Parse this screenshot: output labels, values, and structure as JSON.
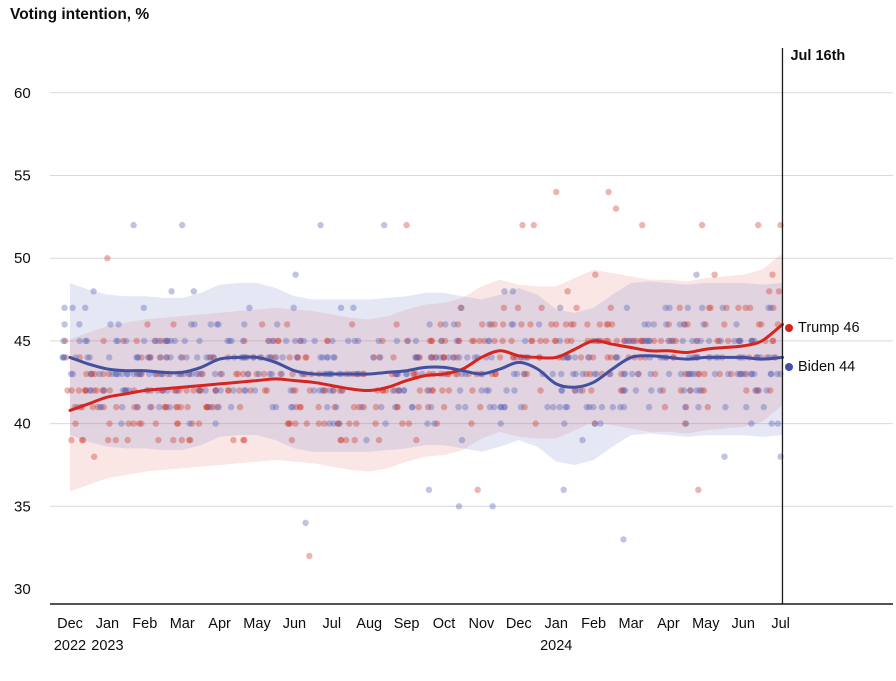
{
  "title": "Voting intention, %",
  "event_label": "Jul 16th",
  "end_labels": {
    "trump": "Trump 46",
    "biden": "Biden 44"
  },
  "colors": {
    "trump_line": "#d6241f",
    "biden_line": "#4350a0",
    "trump_dot": "#cf3c30",
    "biden_dot": "#5a64b8",
    "trump_band": "#e4695e",
    "biden_band": "#7d88cb",
    "grid": "#d9d9d9",
    "axis": "#1a1a1a",
    "text": "#0d0d0d"
  },
  "chart_data": {
    "type": "line+scatter",
    "title": "Voting intention, %",
    "ylabel": "Voting intention, %",
    "y_ticks": [
      30,
      35,
      40,
      45,
      50,
      55,
      60
    ],
    "y_range": [
      29,
      62
    ],
    "grid": true,
    "x_tick_labels": [
      "Dec",
      "Jan",
      "Feb",
      "Mar",
      "Apr",
      "May",
      "Jun",
      "Jul",
      "Aug",
      "Sep",
      "Oct",
      "Nov",
      "Dec",
      "Jan",
      "Feb",
      "Mar",
      "Apr",
      "May",
      "Jun",
      "Jul"
    ],
    "year_labels": [
      {
        "text": "2022",
        "month_index": 0
      },
      {
        "text": "2023",
        "month_index": 1
      },
      {
        "text": "2024",
        "month_index": 13
      }
    ],
    "event_line": {
      "month_index": 19.05,
      "label": "Jul 16th"
    },
    "x": [
      0,
      0.5,
      1,
      1.5,
      2,
      2.5,
      3,
      3.5,
      4,
      4.5,
      5,
      5.5,
      6,
      6.5,
      7,
      7.5,
      8,
      8.5,
      9,
      9.5,
      10,
      10.5,
      11,
      11.5,
      12,
      12.5,
      13,
      13.5,
      14,
      14.5,
      15,
      15.5,
      16,
      16.5,
      17,
      17.5,
      18,
      18.5,
      19.05
    ],
    "series": [
      {
        "name": "Trump",
        "end_value": 46,
        "values": [
          40.8,
          41.2,
          41.6,
          41.8,
          42.0,
          42.1,
          42.2,
          42.3,
          42.4,
          42.5,
          42.6,
          42.7,
          42.6,
          42.5,
          42.3,
          42.1,
          42.0,
          42.2,
          42.6,
          42.9,
          43.0,
          43.3,
          44.0,
          44.4,
          44.1,
          44.0,
          44.0,
          44.5,
          45.0,
          44.8,
          44.6,
          44.4,
          44.4,
          44.3,
          44.5,
          44.6,
          44.7,
          45.0,
          46.0
        ]
      },
      {
        "name": "Biden",
        "end_value": 44,
        "values": [
          44.0,
          43.6,
          43.3,
          43.2,
          43.2,
          43.1,
          43.1,
          43.4,
          43.9,
          44.0,
          44.0,
          43.7,
          43.2,
          43.0,
          43.0,
          43.0,
          43.0,
          43.1,
          43.2,
          43.4,
          43.4,
          43.2,
          43.0,
          43.3,
          43.7,
          43.3,
          42.4,
          42.2,
          42.5,
          43.3,
          44.0,
          44.1,
          44.0,
          43.9,
          44.0,
          44.0,
          44.0,
          43.9,
          44.0
        ]
      }
    ],
    "bands": {
      "trump": {
        "upper": 4.3,
        "lower": 4.9
      },
      "biden": {
        "upper": 4.5,
        "lower": 4.7
      }
    },
    "scatter": {
      "seed": 11,
      "per_series": 420,
      "x_min": -0.2,
      "x_max": 19.0,
      "noise": 3.1,
      "round_to_integer": true,
      "dot_radius": 3.2,
      "dot_opacity": 0.38,
      "outliers": {
        "trump": [
          [
            1.0,
            50
          ],
          [
            6.4,
            32
          ],
          [
            9.0,
            52
          ],
          [
            12.1,
            52
          ],
          [
            12.4,
            52
          ],
          [
            13.0,
            54
          ],
          [
            14.4,
            54
          ],
          [
            14.6,
            53
          ],
          [
            15.3,
            52
          ],
          [
            16.9,
            52
          ],
          [
            18.4,
            52
          ],
          [
            19.0,
            52
          ],
          [
            16.8,
            36
          ],
          [
            10.9,
            36
          ]
        ],
        "biden": [
          [
            1.7,
            52
          ],
          [
            3.0,
            52
          ],
          [
            6.7,
            52
          ],
          [
            8.4,
            52
          ],
          [
            6.3,
            34
          ],
          [
            14.8,
            33
          ],
          [
            10.4,
            35
          ],
          [
            11.3,
            35
          ],
          [
            13.2,
            36
          ],
          [
            17.5,
            38
          ],
          [
            19.0,
            38
          ],
          [
            9.6,
            36
          ]
        ]
      }
    }
  }
}
